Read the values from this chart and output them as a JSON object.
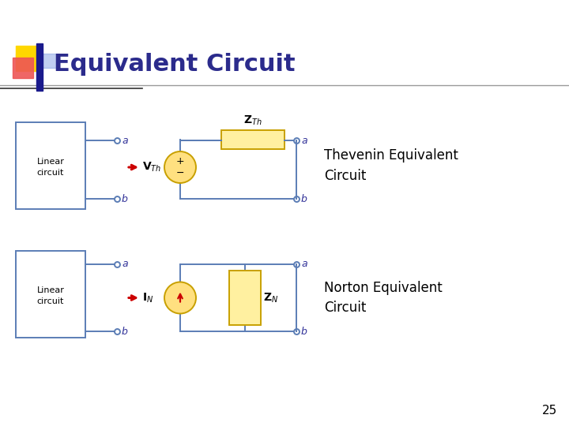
{
  "title": "Equivalent Circuit",
  "title_color": "#2B2B8C",
  "title_fontsize": 22,
  "bg_color": "#FFFFFF",
  "thevenin_label": "Thevenin Equivalent\nCircuit",
  "norton_label": "Norton Equivalent\nCircuit",
  "page_number": "25",
  "slide_line_color": "#999999",
  "circuit_line_color": "#5B7DB5",
  "box_fill": "#FFF0A0",
  "box_edge": "#C8A000",
  "source_fill": "#FFE080",
  "source_edge": "#C8A000",
  "arrow_color": "#CC0000",
  "label_color": "#000000",
  "italic_label_color": "#333399",
  "deco_gold": "#FFD700",
  "deco_red": "#EE5555",
  "deco_blue_dark": "#1A1A8C",
  "deco_blue_light": "#6688DD"
}
